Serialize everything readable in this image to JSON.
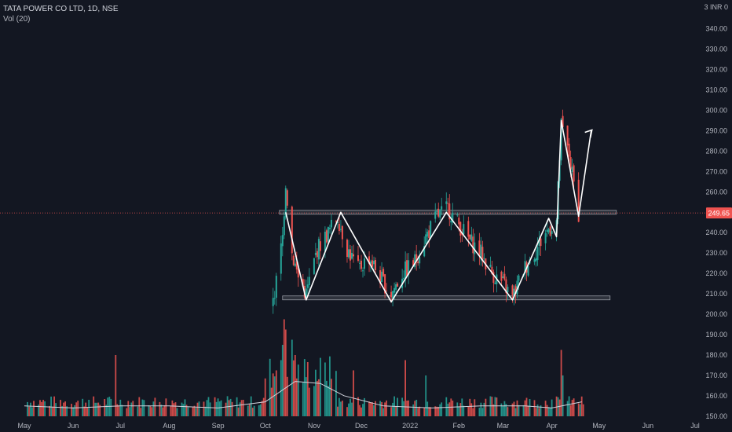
{
  "header": {
    "title": "TATA POWER CO LTD, 1D, NSE",
    "vol": "Vol (20)"
  },
  "axis": {
    "currency": "INR",
    "y_ticks": [
      "340.00",
      "330.00",
      "320.00",
      "310.00",
      "300.00",
      "290.00",
      "280.00",
      "270.00",
      "260.00",
      "250.00",
      "240.00",
      "230.00",
      "220.00",
      "210.00",
      "200.00",
      "190.00",
      "180.00",
      "170.00",
      "160.00",
      "150.00"
    ],
    "last_price_label": "249.65"
  },
  "colors": {
    "background": "#131722",
    "up": "#26a69a",
    "down": "#ef5350",
    "annotation": "#ffffff",
    "zone": "#b2b5be",
    "price_line": "#ef5350"
  },
  "chart_data": {
    "type": "candlestick",
    "title": "TATA POWER CO LTD, 1D, NSE",
    "x_ticks": [
      "May",
      "Jun",
      "Jul",
      "Aug",
      "Sep",
      "Oct",
      "Nov",
      "Dec",
      "2022",
      "Feb",
      "Mar",
      "Apr",
      "May",
      "Jun",
      "Jul"
    ],
    "ylim": [
      150,
      340
    ],
    "last_price": 249.65,
    "support_zone": 208,
    "resistance_zone": 250,
    "pattern_points": [
      {
        "date": "2021-10-14",
        "price": 250
      },
      {
        "date": "2021-10-27",
        "price": 207
      },
      {
        "date": "2021-11-18",
        "price": 250
      },
      {
        "date": "2021-12-20",
        "price": 206
      },
      {
        "date": "2022-01-24",
        "price": 250
      },
      {
        "date": "2022-03-07",
        "price": 207
      },
      {
        "date": "2022-03-30",
        "price": 247
      },
      {
        "date": "2022-04-04",
        "price": 238
      },
      {
        "date": "2022-04-07",
        "price": 295
      },
      {
        "date": "2022-04-18",
        "price": 248
      },
      {
        "date": "2022-04-26",
        "price": 290
      }
    ],
    "price_path": [
      [
        "2021-10-06",
        205
      ],
      [
        "2021-10-12",
        238
      ],
      [
        "2021-10-14",
        265
      ],
      [
        "2021-10-18",
        230
      ],
      [
        "2021-10-22",
        218
      ],
      [
        "2021-10-27",
        210
      ],
      [
        "2021-11-03",
        232
      ],
      [
        "2021-11-10",
        240
      ],
      [
        "2021-11-16",
        248
      ],
      [
        "2021-11-22",
        232
      ],
      [
        "2021-11-29",
        222
      ],
      [
        "2021-12-06",
        228
      ],
      [
        "2021-12-13",
        218
      ],
      [
        "2021-12-20",
        210
      ],
      [
        "2021-12-27",
        220
      ],
      [
        "2022-01-04",
        226
      ],
      [
        "2022-01-11",
        238
      ],
      [
        "2022-01-18",
        248
      ],
      [
        "2022-01-25",
        252
      ],
      [
        "2022-02-01",
        244
      ],
      [
        "2022-02-08",
        236
      ],
      [
        "2022-02-15",
        230
      ],
      [
        "2022-02-22",
        220
      ],
      [
        "2022-03-01",
        215
      ],
      [
        "2022-03-07",
        208
      ],
      [
        "2022-03-14",
        222
      ],
      [
        "2022-03-21",
        230
      ],
      [
        "2022-03-28",
        240
      ],
      [
        "2022-04-04",
        246
      ],
      [
        "2022-04-07",
        292
      ],
      [
        "2022-04-12",
        278
      ],
      [
        "2022-04-18",
        249.65
      ]
    ],
    "volume_ma": [
      [
        "2021-05-01",
        155
      ],
      [
        "2021-06-01",
        154
      ],
      [
        "2021-07-01",
        155
      ],
      [
        "2021-08-01",
        155
      ],
      [
        "2021-09-01",
        154
      ],
      [
        "2021-10-01",
        157
      ],
      [
        "2021-10-20",
        167
      ],
      [
        "2021-11-05",
        166
      ],
      [
        "2021-11-20",
        160
      ],
      [
        "2021-12-15",
        155
      ],
      [
        "2022-01-15",
        154
      ],
      [
        "2022-02-15",
        155
      ],
      [
        "2022-03-15",
        155
      ],
      [
        "2022-04-01",
        154
      ],
      [
        "2022-04-20",
        157
      ]
    ]
  }
}
